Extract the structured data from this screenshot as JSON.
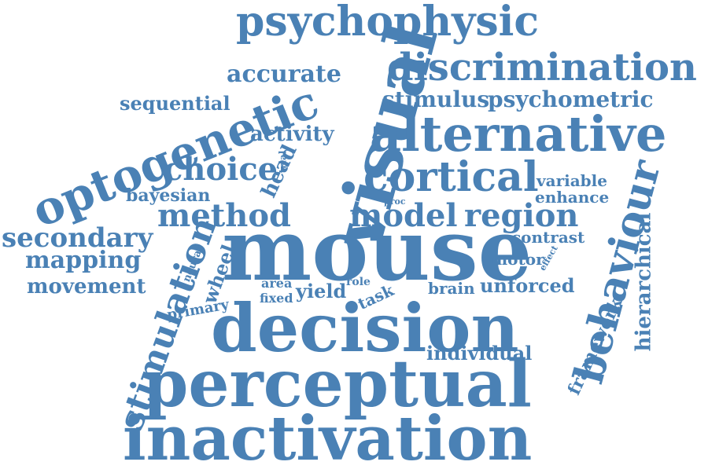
{
  "colors": {
    "word": "#4a81b5",
    "background": "#ffffff"
  },
  "words": [
    "psychophysic",
    "discrimination",
    "accurate",
    "visual",
    "sequential",
    "stimulus",
    "psychometric",
    "optogenetic",
    "activity",
    "alternative",
    "choice",
    "trial",
    "head",
    "cortical",
    "variable",
    "enhance",
    "bayesian",
    "method",
    "model",
    "region",
    "behaviour",
    "secondary",
    "proc",
    "hierarchical",
    "mouse",
    "contrast",
    "mapping",
    "neural",
    "wheel",
    "motor",
    "effect",
    "movement",
    "area",
    "role",
    "yield",
    "brain",
    "unforced",
    "fixed",
    "task",
    "primary",
    "stimulation",
    "decision",
    "framework",
    "individual",
    "perceptual",
    "inactivation"
  ]
}
